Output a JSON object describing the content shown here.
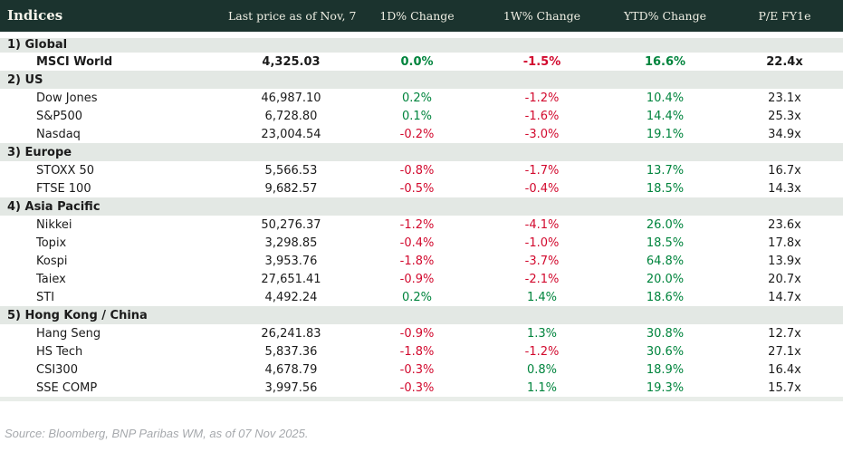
{
  "colors": {
    "header_bg": "#1b332e",
    "header_text": "#eeeee3",
    "section_bg": "#e3e8e4",
    "positive": "#00843d",
    "negative": "#d20a2e",
    "text": "#1b1b1b",
    "source_text": "#a6a9ad",
    "bottom_strip": "#e9ede9"
  },
  "chart_data": {
    "type": "table",
    "title": "Indices",
    "columns": [
      "Indices",
      "Last price as of Nov, 7",
      "1D% Change",
      "1W% Change",
      "YTD% Change",
      "P/E FY1e"
    ],
    "sections": [
      {
        "label": "1) Global",
        "rows": [
          {
            "name": "MSCI World",
            "last_price": "4,325.03",
            "chg_1d": "0.0%",
            "chg_1w": "-1.5%",
            "chg_ytd": "16.6%",
            "pe_fy1e": "22.4x",
            "highlight": true
          }
        ]
      },
      {
        "label": "2) US",
        "rows": [
          {
            "name": "Dow Jones",
            "last_price": "46,987.10",
            "chg_1d": "0.2%",
            "chg_1w": "-1.2%",
            "chg_ytd": "10.4%",
            "pe_fy1e": "23.1x"
          },
          {
            "name": "S&P500",
            "last_price": "6,728.80",
            "chg_1d": "0.1%",
            "chg_1w": "-1.6%",
            "chg_ytd": "14.4%",
            "pe_fy1e": "25.3x"
          },
          {
            "name": "Nasdaq",
            "last_price": "23,004.54",
            "chg_1d": "-0.2%",
            "chg_1w": "-3.0%",
            "chg_ytd": "19.1%",
            "pe_fy1e": "34.9x"
          }
        ]
      },
      {
        "label": "3) Europe",
        "rows": [
          {
            "name": "STOXX 50",
            "last_price": "5,566.53",
            "chg_1d": "-0.8%",
            "chg_1w": "-1.7%",
            "chg_ytd": "13.7%",
            "pe_fy1e": "16.7x"
          },
          {
            "name": "FTSE 100",
            "last_price": "9,682.57",
            "chg_1d": "-0.5%",
            "chg_1w": "-0.4%",
            "chg_ytd": "18.5%",
            "pe_fy1e": "14.3x"
          }
        ]
      },
      {
        "label": "4) Asia Pacific",
        "rows": [
          {
            "name": "Nikkei",
            "last_price": "50,276.37",
            "chg_1d": "-1.2%",
            "chg_1w": "-4.1%",
            "chg_ytd": "26.0%",
            "pe_fy1e": "23.6x"
          },
          {
            "name": "Topix",
            "last_price": "3,298.85",
            "chg_1d": "-0.4%",
            "chg_1w": "-1.0%",
            "chg_ytd": "18.5%",
            "pe_fy1e": "17.8x"
          },
          {
            "name": "Kospi",
            "last_price": "3,953.76",
            "chg_1d": "-1.8%",
            "chg_1w": "-3.7%",
            "chg_ytd": "64.8%",
            "pe_fy1e": "13.9x"
          },
          {
            "name": "Taiex",
            "last_price": "27,651.41",
            "chg_1d": "-0.9%",
            "chg_1w": "-2.1%",
            "chg_ytd": "20.0%",
            "pe_fy1e": "20.7x"
          },
          {
            "name": "STI",
            "last_price": "4,492.24",
            "chg_1d": "0.2%",
            "chg_1w": "1.4%",
            "chg_ytd": "18.6%",
            "pe_fy1e": "14.7x"
          }
        ]
      },
      {
        "label": "5) Hong Kong / China",
        "rows": [
          {
            "name": "Hang Seng",
            "last_price": "26,241.83",
            "chg_1d": "-0.9%",
            "chg_1w": "1.3%",
            "chg_ytd": "30.8%",
            "pe_fy1e": "12.7x"
          },
          {
            "name": "HS Tech",
            "last_price": "5,837.36",
            "chg_1d": "-1.8%",
            "chg_1w": "-1.2%",
            "chg_ytd": "30.6%",
            "pe_fy1e": "27.1x"
          },
          {
            "name": "CSI300",
            "last_price": "4,678.79",
            "chg_1d": "-0.3%",
            "chg_1w": "0.8%",
            "chg_ytd": "18.9%",
            "pe_fy1e": "16.4x"
          },
          {
            "name": "SSE COMP",
            "last_price": "3,997.56",
            "chg_1d": "-0.3%",
            "chg_1w": "1.1%",
            "chg_ytd": "19.3%",
            "pe_fy1e": "15.7x"
          }
        ]
      }
    ]
  },
  "footer": {
    "source": "Source: Bloomberg, BNP Paribas WM, as of 07 Nov 2025."
  }
}
